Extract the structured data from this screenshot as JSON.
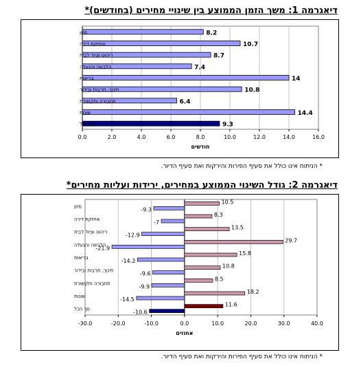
{
  "chart_data": [
    {
      "type": "bar",
      "orientation": "horizontal",
      "title": "דיאגרמה 1: משך הזמן הממוצע בין שינויי מחירים (בחודשים)*",
      "xlabel": "חודשים",
      "xlim": [
        0,
        16
      ],
      "xticks": [
        "0.0",
        "2.0",
        "4.0",
        "6.0",
        "8.0",
        "10.0",
        "12.0",
        "14.0",
        "16.0"
      ],
      "categories": [
        "מזון",
        "אחזקת דירה",
        "ריהוט וציוד לבית",
        "הלבשה והנעלה",
        "בריאות",
        "חינוך, תרבות ובידור",
        "תחבורה ותקשורת",
        "שונות",
        "סך הכל"
      ],
      "values": [
        8.2,
        10.7,
        8.7,
        7.4,
        14,
        10.8,
        6.4,
        14.4,
        9.3
      ],
      "value_labels": [
        "8.2",
        "10.7",
        "8.7",
        "7.4",
        "14",
        "10.8",
        "6.4",
        "14.4",
        "9.3"
      ],
      "colors": {
        "bar": "#9999ff",
        "total": "#000080"
      },
      "note": "* הניתוח אינו כולל את סעיף הפירות והירקות ואת סעיף הדיור."
    },
    {
      "type": "bar",
      "orientation": "horizontal",
      "title": "דיאגרמה 2: גודל השינוי הממוצע במחירים, ירידות ועליות מחירים*",
      "xlabel": "אחוזים",
      "xlim": [
        -30,
        40
      ],
      "xticks": [
        "-30.0",
        "-20.0",
        "-10.0",
        "0.0",
        "10.0",
        "20.0",
        "30.0",
        "40.0"
      ],
      "categories": [
        "מזון",
        "אחזקת דירה",
        "ריהוט וציוד לבית",
        "הלבשה והנעלה",
        "בריאות",
        "חינוך, תרבות ובידור",
        "תחבורה ותקשורת",
        "שונות",
        "סך הכל"
      ],
      "series": [
        {
          "values": [
            -9.3,
            -7,
            -12.9,
            -21.9,
            -14.2,
            -9.6,
            -9.9,
            -14.5,
            -10.6
          ],
          "labels": [
            "-9.3",
            "-7",
            "-12.9",
            "-21.9",
            "-14.2",
            "-9.6",
            "-9.9",
            "-14.5",
            "-10.6"
          ]
        },
        {
          "values": [
            10.5,
            8.3,
            13.5,
            29.7,
            15.8,
            10.8,
            8.5,
            18.2,
            11.6
          ],
          "labels": [
            "10.5",
            "8.3",
            "13.5",
            "29.7",
            "15.8",
            "10.8",
            "8.5",
            "18.2",
            "11.6"
          ]
        }
      ],
      "colors": {
        "down": "#9999ff",
        "down_total": "#000080",
        "up": "#cc99aa",
        "up_total": "#800000"
      },
      "note": "* הניתוח אינו כולל את סעיף הפירות והירקות ואת סעיף הדיור."
    }
  ]
}
